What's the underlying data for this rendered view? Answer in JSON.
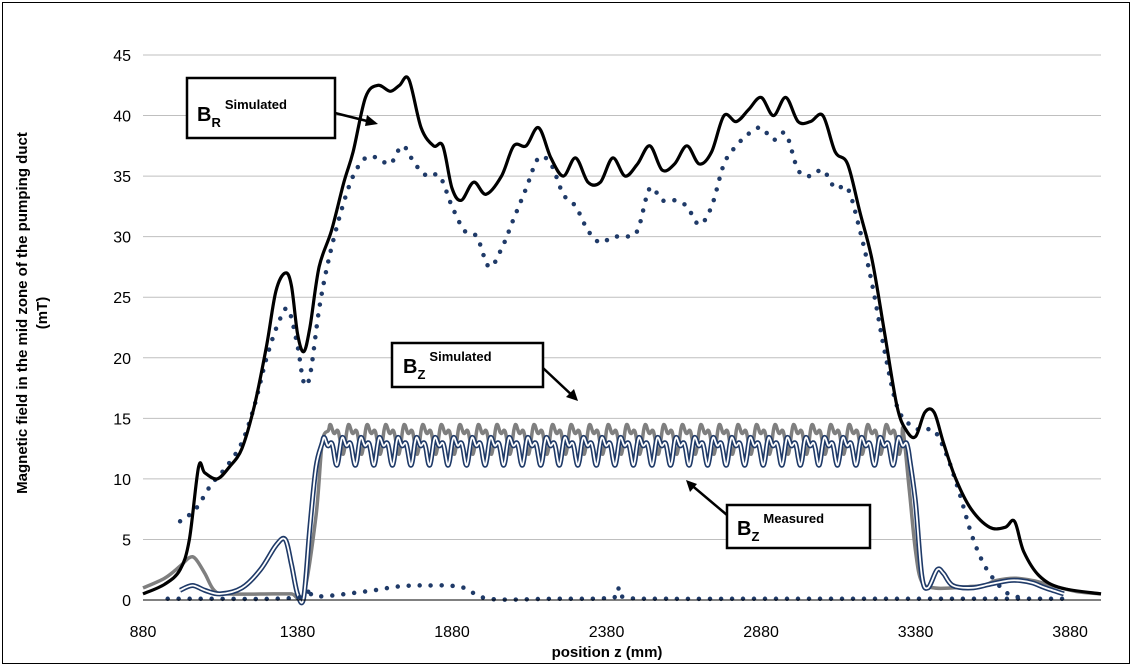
{
  "chart_data": {
    "type": "line",
    "xlabel": "position z (mm)",
    "ylabel_line1": "Magnetic field in the mid zone of the pumping duct",
    "ylabel_line2": "(mT)",
    "xlim": [
      880,
      3980
    ],
    "ylim": [
      0,
      45
    ],
    "x_ticks": [
      "880",
      "1380",
      "1880",
      "2380",
      "2880",
      "3380",
      "3880"
    ],
    "y_ticks": [
      "0",
      "5",
      "10",
      "15",
      "20",
      "25",
      "30",
      "35",
      "40",
      "45"
    ],
    "grid": "horizontal",
    "annotations": [
      {
        "main": "B",
        "sub": "R",
        "sup": "Simulated",
        "points_to": "BR simulated"
      },
      {
        "main": "B",
        "sub": "Z",
        "sup": "Simulated",
        "points_to": "BZ simulated"
      },
      {
        "main": "B",
        "sub": "Z",
        "sup": "Measured",
        "points_to": "BZ measured"
      }
    ],
    "series": [
      {
        "key": "br_sim",
        "style": "solid-black",
        "color": "#000000",
        "points": [
          [
            880,
            0.5
          ],
          [
            950,
            1.3
          ],
          [
            1000,
            2.5
          ],
          [
            1030,
            5
          ],
          [
            1060,
            11
          ],
          [
            1080,
            10.5
          ],
          [
            1120,
            10
          ],
          [
            1160,
            11
          ],
          [
            1200,
            12.5
          ],
          [
            1240,
            16
          ],
          [
            1280,
            21
          ],
          [
            1310,
            25.5
          ],
          [
            1340,
            27
          ],
          [
            1360,
            26
          ],
          [
            1380,
            22
          ],
          [
            1400,
            20.5
          ],
          [
            1420,
            22.5
          ],
          [
            1450,
            27.5
          ],
          [
            1490,
            30.5
          ],
          [
            1530,
            34.5
          ],
          [
            1560,
            37
          ],
          [
            1600,
            41.5
          ],
          [
            1640,
            42.5
          ],
          [
            1680,
            42
          ],
          [
            1710,
            42.5
          ],
          [
            1740,
            43
          ],
          [
            1780,
            39
          ],
          [
            1820,
            37.5
          ],
          [
            1850,
            37.5
          ],
          [
            1880,
            34
          ],
          [
            1910,
            33
          ],
          [
            1950,
            34.5
          ],
          [
            1990,
            33.5
          ],
          [
            2040,
            35
          ],
          [
            2080,
            37.5
          ],
          [
            2120,
            37.5
          ],
          [
            2160,
            39
          ],
          [
            2200,
            36.5
          ],
          [
            2240,
            35
          ],
          [
            2280,
            36.5
          ],
          [
            2320,
            34.5
          ],
          [
            2360,
            34.5
          ],
          [
            2400,
            36.5
          ],
          [
            2440,
            35
          ],
          [
            2480,
            36
          ],
          [
            2520,
            37.5
          ],
          [
            2560,
            35.5
          ],
          [
            2600,
            36
          ],
          [
            2640,
            37.5
          ],
          [
            2680,
            36
          ],
          [
            2720,
            37
          ],
          [
            2760,
            40
          ],
          [
            2800,
            39.5
          ],
          [
            2840,
            40.5
          ],
          [
            2880,
            41.5
          ],
          [
            2920,
            40
          ],
          [
            2960,
            41.5
          ],
          [
            3000,
            39.5
          ],
          [
            3040,
            39.5
          ],
          [
            3080,
            40
          ],
          [
            3120,
            37
          ],
          [
            3160,
            36
          ],
          [
            3200,
            32
          ],
          [
            3240,
            28
          ],
          [
            3280,
            22
          ],
          [
            3320,
            16
          ],
          [
            3350,
            14
          ],
          [
            3380,
            13.5
          ],
          [
            3410,
            15.5
          ],
          [
            3440,
            15.5
          ],
          [
            3470,
            13
          ],
          [
            3510,
            10
          ],
          [
            3560,
            7.5
          ],
          [
            3620,
            6
          ],
          [
            3670,
            6
          ],
          [
            3700,
            6.5
          ],
          [
            3730,
            4
          ],
          [
            3780,
            2
          ],
          [
            3850,
            1
          ],
          [
            3980,
            0.5
          ]
        ]
      },
      {
        "key": "br_meas",
        "style": "dotted-navy",
        "color": "#1f3a68",
        "points": [
          [
            1000,
            6.5
          ],
          [
            1050,
            7.5
          ],
          [
            1100,
            9.5
          ],
          [
            1150,
            11
          ],
          [
            1200,
            13
          ],
          [
            1240,
            16
          ],
          [
            1280,
            20
          ],
          [
            1320,
            23
          ],
          [
            1350,
            24
          ],
          [
            1380,
            21
          ],
          [
            1400,
            18
          ],
          [
            1420,
            18.5
          ],
          [
            1450,
            24
          ],
          [
            1480,
            28
          ],
          [
            1520,
            32
          ],
          [
            1560,
            35
          ],
          [
            1600,
            36.5
          ],
          [
            1640,
            36.5
          ],
          [
            1680,
            36
          ],
          [
            1720,
            37.5
          ],
          [
            1760,
            36
          ],
          [
            1800,
            35
          ],
          [
            1840,
            35
          ],
          [
            1880,
            32.5
          ],
          [
            1920,
            30.5
          ],
          [
            1960,
            30
          ],
          [
            2000,
            27.5
          ],
          [
            2040,
            29
          ],
          [
            2080,
            31.5
          ],
          [
            2120,
            34
          ],
          [
            2160,
            36.5
          ],
          [
            2200,
            36
          ],
          [
            2240,
            33.5
          ],
          [
            2280,
            32.5
          ],
          [
            2320,
            30.5
          ],
          [
            2360,
            29.5
          ],
          [
            2400,
            30
          ],
          [
            2440,
            30
          ],
          [
            2480,
            30.5
          ],
          [
            2520,
            34
          ],
          [
            2560,
            33
          ],
          [
            2600,
            33
          ],
          [
            2640,
            32.5
          ],
          [
            2680,
            31
          ],
          [
            2720,
            32.5
          ],
          [
            2760,
            36
          ],
          [
            2800,
            37.5
          ],
          [
            2840,
            38.5
          ],
          [
            2880,
            39
          ],
          [
            2920,
            38
          ],
          [
            2960,
            38.5
          ],
          [
            3000,
            35.5
          ],
          [
            3040,
            35
          ],
          [
            3080,
            35.5
          ],
          [
            3120,
            34
          ],
          [
            3160,
            34
          ],
          [
            3200,
            30.5
          ],
          [
            3240,
            26
          ],
          [
            3280,
            20.5
          ],
          [
            3320,
            16
          ],
          [
            3360,
            14.5
          ],
          [
            3400,
            14
          ],
          [
            3440,
            14
          ],
          [
            3480,
            12
          ],
          [
            3520,
            9
          ],
          [
            3560,
            5.5
          ],
          [
            3600,
            3
          ],
          [
            3640,
            1.5
          ],
          [
            3680,
            0.5
          ],
          [
            3720,
            0.2
          ]
        ]
      },
      {
        "key": "br_meas_base",
        "style": "dotted-navy",
        "color": "#1f3a68",
        "points": [
          [
            960,
            0.1
          ],
          [
            1100,
            0.1
          ],
          [
            1300,
            0.1
          ],
          [
            1400,
            0.3
          ],
          [
            1420,
            1.0
          ],
          [
            1440,
            0.3
          ],
          [
            1600,
            0.7
          ],
          [
            1700,
            1.1
          ],
          [
            1760,
            1.2
          ],
          [
            1800,
            1.2
          ],
          [
            1860,
            1.2
          ],
          [
            1920,
            1.0
          ],
          [
            2000,
            0.1
          ],
          [
            2200,
            0.1
          ],
          [
            2400,
            0.2
          ],
          [
            2420,
            1.0
          ],
          [
            2440,
            0.2
          ],
          [
            2600,
            0.1
          ],
          [
            2800,
            0.1
          ],
          [
            3000,
            0.1
          ],
          [
            3200,
            0.1
          ],
          [
            3400,
            0.1
          ],
          [
            3600,
            0.1
          ],
          [
            3860,
            0.1
          ]
        ]
      },
      {
        "key": "bz_sim",
        "style": "solid-gray",
        "color": "#7f7f7f",
        "points": [
          [
            880,
            1.0
          ],
          [
            950,
            1.8
          ],
          [
            1000,
            2.8
          ],
          [
            1030,
            3.5
          ],
          [
            1050,
            3.4
          ],
          [
            1080,
            2.2
          ],
          [
            1110,
            0.8
          ],
          [
            1150,
            0.5
          ],
          [
            1300,
            0.5
          ],
          [
            1360,
            0.5
          ],
          [
            1400,
            0.5
          ],
          [
            1440,
            7
          ],
          [
            1460,
            13
          ],
          [
            1480,
            13.5
          ],
          [
            3340,
            13.5
          ],
          [
            3360,
            9
          ],
          [
            3380,
            4
          ],
          [
            3400,
            1.5
          ],
          [
            3440,
            1
          ],
          [
            3500,
            1
          ],
          [
            3550,
            1.1
          ],
          [
            3600,
            1.2
          ],
          [
            3640,
            1.6
          ],
          [
            3700,
            1.8
          ],
          [
            3760,
            1.6
          ],
          [
            3820,
            1.2
          ],
          [
            3900,
            0.7
          ],
          [
            3980,
            0.5
          ]
        ],
        "ripple": {
          "from": 1480,
          "to": 3340,
          "base": 13.5,
          "amplitude": 1.5,
          "period": 60
        }
      },
      {
        "key": "bz_meas",
        "style": "double-navy",
        "color": "#1f3a68",
        "points": [
          [
            1000,
            0.8
          ],
          [
            1040,
            1.2
          ],
          [
            1080,
            0.8
          ],
          [
            1130,
            0.5
          ],
          [
            1200,
            1.0
          ],
          [
            1260,
            2.5
          ],
          [
            1310,
            4.5
          ],
          [
            1340,
            5.0
          ],
          [
            1360,
            3.0
          ],
          [
            1380,
            0.5
          ],
          [
            1400,
            0.2
          ],
          [
            1420,
            6
          ],
          [
            1440,
            11
          ],
          [
            1460,
            12.5
          ],
          [
            3360,
            12.5
          ],
          [
            3380,
            8
          ],
          [
            3400,
            2
          ],
          [
            3420,
            1
          ],
          [
            3450,
            2.5
          ],
          [
            3470,
            2.2
          ],
          [
            3500,
            1.2
          ],
          [
            3560,
            1.0
          ],
          [
            3620,
            1.3
          ],
          [
            3680,
            1.6
          ],
          [
            3720,
            1.6
          ],
          [
            3760,
            1.4
          ],
          [
            3800,
            1.0
          ],
          [
            3860,
            0.5
          ]
        ],
        "ripple": {
          "from": 1460,
          "to": 3360,
          "base": 12.5,
          "amplitude": 1.4,
          "period": 60
        }
      }
    ]
  }
}
